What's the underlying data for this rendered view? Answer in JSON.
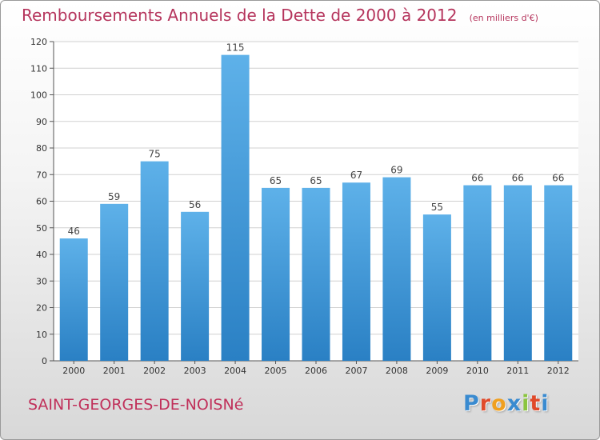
{
  "header": {
    "title": "Remboursements Annuels de la Dette de 2000 à 2012",
    "unit": "(en milliers d'€)"
  },
  "footer": {
    "commune": "SAINT-GEORGES-DE-NOISNé",
    "logo_text": "Proxiti"
  },
  "colors": {
    "title": "#b5345c",
    "bar_top": "#5eb1e9",
    "bar_bottom": "#2a80c4",
    "logo": [
      "#3a8bd0",
      "#e04a2a",
      "#f0a020",
      "#3a8bd0",
      "#8bc53f",
      "#e04a2a",
      "#3a8bd0"
    ]
  },
  "chart_data": {
    "type": "bar",
    "title": "Remboursements Annuels de la Dette de 2000 à 2012",
    "categories": [
      "2000",
      "2001",
      "2002",
      "2003",
      "2004",
      "2005",
      "2006",
      "2007",
      "2008",
      "2009",
      "2010",
      "2011",
      "2012"
    ],
    "values": [
      46,
      59,
      75,
      56,
      115,
      65,
      65,
      67,
      69,
      55,
      66,
      66,
      66
    ],
    "ylim": [
      0,
      120
    ],
    "yticks": [
      0,
      10,
      20,
      30,
      40,
      50,
      60,
      70,
      80,
      90,
      100,
      110,
      120
    ],
    "grid": true,
    "legend": "none"
  }
}
